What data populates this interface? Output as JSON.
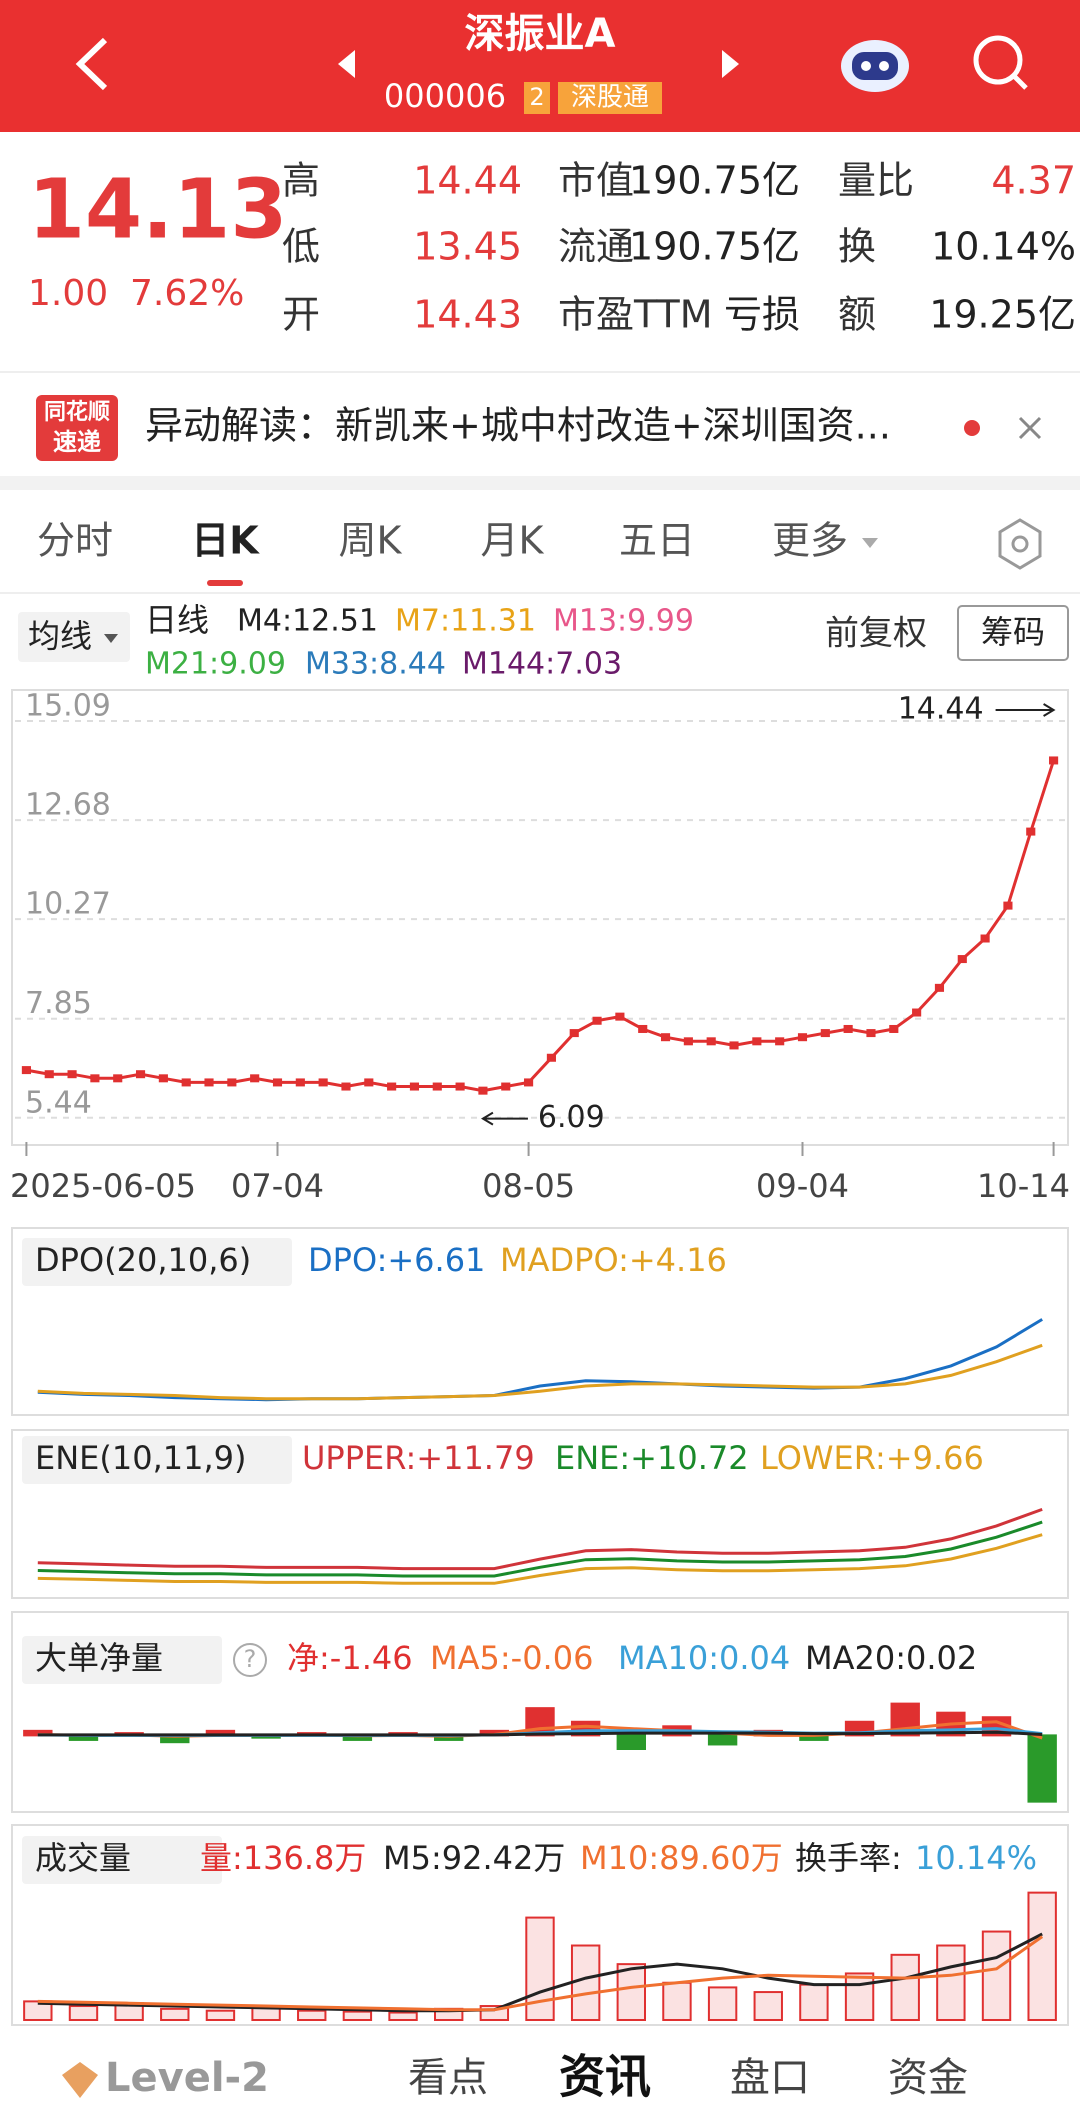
{
  "header": {
    "title": "深振业A",
    "code": "000006",
    "badge_num": "2",
    "badge": "深股通"
  },
  "quote": {
    "price": "14.13",
    "change": "1.00",
    "change_pct": "7.62%",
    "fields": [
      {
        "label": "高",
        "value": "14.44",
        "color": "#e33b3b"
      },
      {
        "label": "低",
        "value": "13.45",
        "color": "#e33b3b"
      },
      {
        "label": "开",
        "value": "14.43",
        "color": "#e33b3b"
      },
      {
        "label": "市值",
        "value": "190.75亿",
        "color": "#222222"
      },
      {
        "label": "流通",
        "value": "190.75亿",
        "color": "#222222"
      },
      {
        "label": "市盈TTM",
        "value": "亏损",
        "color": "#222222"
      },
      {
        "label": "量比",
        "value": "4.37",
        "color": "#e33b3b"
      },
      {
        "label": "换",
        "value": "10.14%",
        "color": "#222222"
      },
      {
        "label": "额",
        "value": "19.25亿",
        "color": "#222222"
      }
    ]
  },
  "news": {
    "brand_top": "同花顺",
    "brand_bottom": "速递",
    "text": "异动解读：新凯来+城中村改造+深圳国资..."
  },
  "tabs": {
    "items": [
      "分时",
      "日K",
      "周K",
      "月K",
      "五日",
      "更多"
    ],
    "active": 1
  },
  "kline_header": {
    "indicator": "均线",
    "period": "日线",
    "mas": [
      {
        "text": "M4:12.51",
        "color": "#222222"
      },
      {
        "text": "M7:11.31",
        "color": "#e8a317"
      },
      {
        "text": "M13:9.99",
        "color": "#e8578a"
      },
      {
        "text": "M21:9.09",
        "color": "#3cb043"
      },
      {
        "text": "M33:8.44",
        "color": "#2b7bba"
      },
      {
        "text": "M144:7.03",
        "color": "#6a1b6a"
      }
    ],
    "adjust": "前复权",
    "chips": "筹码"
  },
  "chart_data": [
    {
      "type": "line",
      "categories": [
        "2025-06-05",
        null,
        null,
        null,
        null,
        null,
        null,
        null,
        null,
        null,
        null,
        "07-04",
        null,
        null,
        null,
        null,
        null,
        null,
        null,
        null,
        null,
        null,
        "08-05",
        null,
        null,
        null,
        null,
        null,
        null,
        null,
        null,
        null,
        null,
        null,
        "09-04",
        null,
        null,
        null,
        null,
        null,
        null,
        null,
        null,
        null,
        null,
        "10-14"
      ],
      "values": [
        6.6,
        6.5,
        6.5,
        6.4,
        6.4,
        6.5,
        6.4,
        6.3,
        6.3,
        6.3,
        6.4,
        6.3,
        6.3,
        6.3,
        6.2,
        6.3,
        6.2,
        6.2,
        6.2,
        6.2,
        6.1,
        6.2,
        6.3,
        6.9,
        7.5,
        7.8,
        7.9,
        7.6,
        7.4,
        7.3,
        7.3,
        7.2,
        7.3,
        7.3,
        7.4,
        7.5,
        7.6,
        7.5,
        7.6,
        8.0,
        8.6,
        9.3,
        9.8,
        10.6,
        12.4,
        14.13
      ],
      "color": "#e03030",
      "ylim": [
        4.9,
        15.6
      ],
      "yticks": [
        15.09,
        12.68,
        10.27,
        7.85,
        5.44
      ],
      "grid": true,
      "high_label": "14.44",
      "low_label": "6.09"
    },
    {
      "type": "line",
      "title": "DPO(20,10,6)",
      "ylim": [
        -1.5,
        7.5
      ],
      "series": [
        {
          "name": "DPO:+6.61",
          "color": "#1a6fc4",
          "values": [
            -0.3,
            -0.5,
            -0.6,
            -0.8,
            -0.9,
            -1.0,
            -0.9,
            -0.9,
            -0.8,
            -0.7,
            -0.6,
            0.3,
            0.8,
            0.7,
            0.5,
            0.3,
            0.2,
            0.1,
            0.2,
            1.0,
            2.2,
            4.0,
            6.61
          ]
        },
        {
          "name": "MADPO:+4.16",
          "color": "#e0a020",
          "values": [
            -0.2,
            -0.4,
            -0.5,
            -0.6,
            -0.8,
            -0.9,
            -0.9,
            -0.9,
            -0.8,
            -0.7,
            -0.6,
            -0.2,
            0.3,
            0.5,
            0.5,
            0.4,
            0.3,
            0.2,
            0.2,
            0.5,
            1.3,
            2.6,
            4.16
          ]
        }
      ]
    },
    {
      "type": "line",
      "title": "ENE(10,11,9)",
      "ylim": [
        5,
        13
      ],
      "series": [
        {
          "name": "UPPER:+11.79",
          "color": "#d0343a",
          "values": [
            7.3,
            7.2,
            7.1,
            7.0,
            7.0,
            6.9,
            6.9,
            6.9,
            6.8,
            6.8,
            6.8,
            7.6,
            8.3,
            8.4,
            8.2,
            8.1,
            8.1,
            8.2,
            8.3,
            8.6,
            9.3,
            10.4,
            11.79
          ]
        },
        {
          "name": "ENE:+10.72",
          "color": "#1a8a2a",
          "values": [
            6.64,
            6.55,
            6.45,
            6.36,
            6.36,
            6.27,
            6.27,
            6.27,
            6.18,
            6.18,
            6.18,
            6.91,
            7.55,
            7.64,
            7.45,
            7.36,
            7.36,
            7.45,
            7.55,
            7.82,
            8.45,
            9.45,
            10.72
          ]
        },
        {
          "name": "LOWER:+9.66",
          "color": "#e0a020",
          "values": [
            5.98,
            5.9,
            5.81,
            5.72,
            5.72,
            5.64,
            5.64,
            5.64,
            5.56,
            5.56,
            5.56,
            6.22,
            6.8,
            6.88,
            6.71,
            6.62,
            6.62,
            6.71,
            6.8,
            7.04,
            7.61,
            8.51,
            9.66
          ]
        }
      ]
    },
    {
      "type": "bar",
      "title": "大单净量",
      "help": "?",
      "ylim": [
        -1.6,
        1.0
      ],
      "series": [
        {
          "name": "净:-1.46",
          "color": "#e03030",
          "negative_color": "#2a9a2a",
          "values": [
            0.1,
            -0.1,
            0.05,
            -0.15,
            0.1,
            -0.05,
            0.05,
            -0.1,
            0.05,
            -0.1,
            0.1,
            0.6,
            0.3,
            -0.3,
            0.2,
            -0.2,
            0.1,
            -0.1,
            0.3,
            0.7,
            0.5,
            0.4,
            -1.46
          ]
        },
        {
          "name": "MA5:-0.06",
          "type": "line",
          "color": "#f07030",
          "values": [
            0.02,
            0,
            0.01,
            -0.02,
            0,
            0,
            0.01,
            -0.01,
            0,
            -0.02,
            0.02,
            0.15,
            0.2,
            0.15,
            0.1,
            0.05,
            0,
            0,
            0.05,
            0.15,
            0.25,
            0.3,
            -0.06
          ]
        },
        {
          "name": "MA10:0.04",
          "type": "line",
          "color": "#3aa0d8",
          "values": [
            0.01,
            0,
            0,
            0,
            0,
            0,
            0,
            0,
            0,
            0,
            0.01,
            0.06,
            0.1,
            0.1,
            0.1,
            0.08,
            0.07,
            0.05,
            0.06,
            0.1,
            0.12,
            0.15,
            0.04
          ]
        },
        {
          "name": "MA20:0.02",
          "type": "line",
          "color": "#222222",
          "values": [
            0.01,
            0.01,
            0.01,
            0.01,
            0.01,
            0.01,
            0.01,
            0.01,
            0.01,
            0.01,
            0.01,
            0.03,
            0.04,
            0.05,
            0.05,
            0.05,
            0.05,
            0.04,
            0.04,
            0.05,
            0.06,
            0.07,
            0.02
          ]
        }
      ]
    },
    {
      "type": "bar",
      "title": "成交量",
      "ylim": [
        0,
        145
      ],
      "turnover_label": "换手率:",
      "turnover_value": "10.14%",
      "series": [
        {
          "name": "量:136.8万",
          "color": "#e03030",
          "values": [
            20,
            15,
            18,
            12,
            10,
            14,
            10,
            9,
            8,
            12,
            15,
            110,
            80,
            60,
            40,
            35,
            30,
            38,
            50,
            70,
            80,
            95,
            136.8
          ]
        },
        {
          "name": "M5:92.42万",
          "type": "line",
          "color": "#222222",
          "values": [
            18,
            17,
            16,
            15,
            14,
            13,
            12,
            11,
            10,
            10,
            11,
            30,
            45,
            55,
            60,
            55,
            45,
            38,
            38,
            45,
            57,
            67,
            92.42
          ]
        },
        {
          "name": "M10:89.60万",
          "type": "line",
          "color": "#f07030",
          "values": [
            20,
            19,
            18,
            17,
            16,
            15,
            14,
            13,
            12,
            11,
            11,
            20,
            28,
            35,
            40,
            45,
            48,
            47,
            46,
            45,
            48,
            55,
            89.6
          ]
        }
      ]
    }
  ],
  "nav": {
    "items": [
      "Level-2",
      "看点",
      "资讯",
      "盘口",
      "资金"
    ],
    "active": 2
  }
}
